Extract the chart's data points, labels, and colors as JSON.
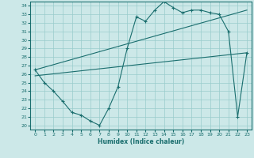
{
  "xlabel": "Humidex (Indice chaleur)",
  "bg_color": "#cce8e8",
  "grid_color": "#99cccc",
  "line_color": "#1a6e6e",
  "xlim": [
    -0.5,
    23.5
  ],
  "ylim": [
    19.5,
    34.5
  ],
  "xticks": [
    0,
    1,
    2,
    3,
    4,
    5,
    6,
    7,
    8,
    9,
    10,
    11,
    12,
    13,
    14,
    15,
    16,
    17,
    18,
    19,
    20,
    21,
    22,
    23
  ],
  "yticks": [
    20,
    21,
    22,
    23,
    24,
    25,
    26,
    27,
    28,
    29,
    30,
    31,
    32,
    33,
    34
  ],
  "line1_x": [
    0,
    1,
    2,
    3,
    4,
    5,
    6,
    7,
    8,
    9,
    10,
    11,
    12,
    13,
    14,
    15,
    16,
    17,
    18,
    19,
    20,
    21,
    22,
    23
  ],
  "line1_y": [
    26.5,
    25.0,
    24.0,
    22.8,
    21.5,
    21.2,
    20.5,
    20.0,
    22.0,
    24.5,
    29.0,
    32.7,
    32.2,
    33.5,
    34.5,
    33.8,
    33.2,
    33.5,
    33.5,
    33.2,
    33.0,
    31.0,
    21.0,
    28.5
  ],
  "line2_x": [
    0,
    23
  ],
  "line2_y": [
    25.8,
    28.5
  ],
  "line3_x": [
    0,
    23
  ],
  "line3_y": [
    26.5,
    33.5
  ]
}
